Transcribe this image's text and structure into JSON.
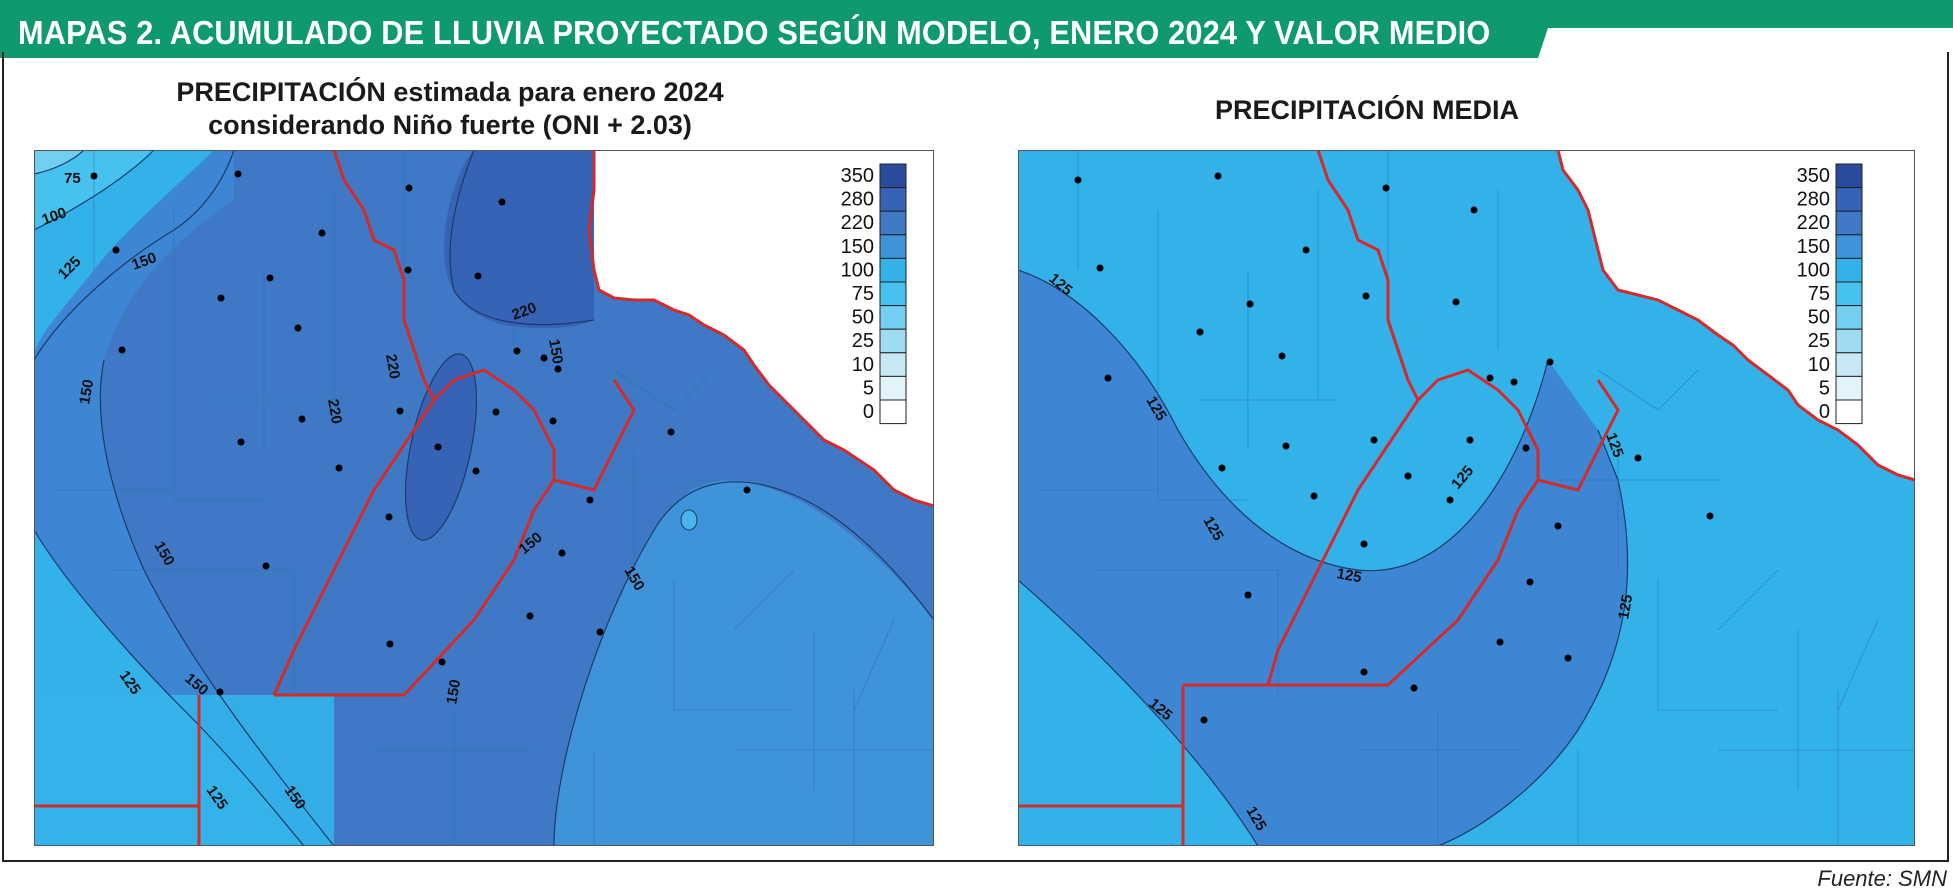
{
  "header": {
    "title": "MAPAS 2. ACUMULADO DE LLUVIA PROYECTADO SEGÚN MODELO, ENERO 2024 Y VALOR MEDIO"
  },
  "maps": [
    {
      "title_line1": "PRECIPITACIÓN estimada para enero 2024",
      "title_line2": "considerando Niño fuerte (ONI + 2.03)",
      "contour_labels": [
        "75",
        "100",
        "125",
        "150",
        "220",
        "220",
        "220",
        "150",
        "150",
        "150",
        "150",
        "150",
        "150",
        "150",
        "125",
        "125",
        "150"
      ]
    },
    {
      "title_line1": "PRECIPITACIÓN MEDIA",
      "contour_labels": [
        "125",
        "125",
        "125",
        "125",
        "125",
        "125",
        "125"
      ]
    }
  ],
  "legend": {
    "values": [
      "350",
      "280",
      "220",
      "150",
      "100",
      "75",
      "50",
      "25",
      "10",
      "5",
      "0"
    ],
    "colors": [
      "#2b4c9e",
      "#3663b6",
      "#3f79c6",
      "#3f93d8",
      "#33b2ea",
      "#47c2ee",
      "#72cfef",
      "#9fdcf1",
      "#c7e8f5",
      "#e2f3f9",
      "#ffffff"
    ]
  },
  "colors": {
    "banner": "#0e9a6e",
    "border_red": "#d42a2a"
  },
  "source": "Fuente: SMN"
}
